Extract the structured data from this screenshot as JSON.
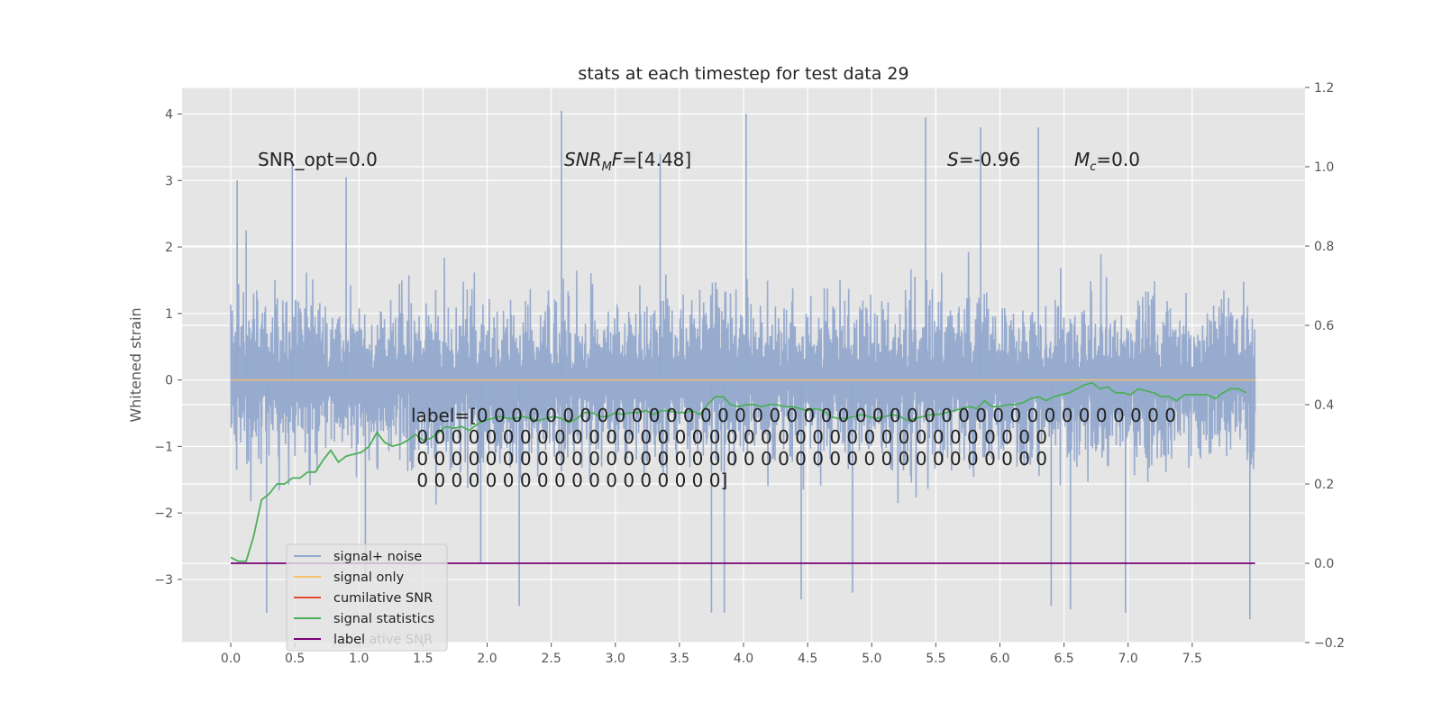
{
  "chart_data": {
    "type": "line",
    "title": "stats at each timestep for test data 29",
    "ylabel": "Whitened strain",
    "xlim": [
      -0.38,
      8.38
    ],
    "ylim": [
      -3.95,
      4.4
    ],
    "y2lim": [
      -0.2,
      1.2
    ],
    "x_ticks": [
      0.0,
      0.5,
      1.0,
      1.5,
      2.0,
      2.5,
      3.0,
      3.5,
      4.0,
      4.5,
      5.0,
      5.5,
      6.0,
      6.5,
      7.0,
      7.5
    ],
    "x_tick_labels": [
      "0.0",
      "0.5",
      "1.0",
      "1.5",
      "2.0",
      "2.5",
      "3.0",
      "3.5",
      "4.0",
      "4.5",
      "5.0",
      "5.5",
      "6.0",
      "6.5",
      "7.0",
      "7.5"
    ],
    "y_ticks": [
      -3,
      -2,
      -1,
      0,
      1,
      2,
      3,
      4
    ],
    "y_tick_labels": [
      "−3",
      "−2",
      "−1",
      "0",
      "1",
      "2",
      "3",
      "4"
    ],
    "y2_ticks": [
      -0.2,
      0.0,
      0.2,
      0.4,
      0.6,
      0.8,
      1.0,
      1.2
    ],
    "y2_tick_labels": [
      "−0.2",
      "0.0",
      "0.2",
      "0.4",
      "0.6",
      "0.8",
      "1.0",
      "1.2"
    ],
    "grid": true,
    "legend_position": "lower-left",
    "annotations": {
      "snr_opt": "SNR_opt=0.0",
      "snr_mf_italic": "SNR",
      "snr_mf_sub": "M",
      "snr_mf_rest": "F",
      "snr_mf_value": "=[4.48]",
      "s_symbol": "S",
      "s_value": "=-0.96",
      "mc_symbol": "M",
      "mc_sub": "c",
      "mc_value": "=0.0",
      "label_lines": [
        "label=[0 0 0 0 0 0 0 0 0 0 0 0 0 0 0 0 0 0 0 0 0 0 0 0 0 0 0 0 0 0 0 0 0 0 0 0 0 0 0 0 0",
        " 0 0 0 0 0 0 0 0 0 0 0 0 0 0 0 0 0 0 0 0 0 0 0 0 0 0 0 0 0 0 0 0 0 0 0 0 0",
        " 0 0 0 0 0 0 0 0 0 0 0 0 0 0 0 0 0 0 0 0 0 0 0 0 0 0 0 0 0 0 0 0 0 0 0 0 0",
        " 0 0 0 0 0 0 0 0 0 0 0 0 0 0 0 0 0 0]"
      ]
    },
    "legend": [
      {
        "name": "signal+ noise",
        "color": "#92a8cd"
      },
      {
        "name": "signal only",
        "color": "#f5c26b"
      },
      {
        "name": "cumilative SNR",
        "color": "#e24a33"
      },
      {
        "name": "signal statistics",
        "color": "#4daf5a"
      },
      {
        "name": "label",
        "color": "#7a0177"
      }
    ],
    "legend_ghost_text": "cumilative SNR",
    "series": [
      {
        "name": "signal+ noise",
        "axis": "left",
        "color": "#92a8cd",
        "x_range": [
          0.0,
          7.99
        ],
        "approx_range": [
          -3.6,
          4.05
        ],
        "peaks": [
          {
            "x": 0.05,
            "y": 3.0
          },
          {
            "x": 0.12,
            "y": 2.25
          },
          {
            "x": 0.28,
            "y": -3.5
          },
          {
            "x": 0.48,
            "y": 3.3
          },
          {
            "x": 0.9,
            "y": 3.05
          },
          {
            "x": 1.05,
            "y": -2.9
          },
          {
            "x": 1.95,
            "y": -2.75
          },
          {
            "x": 2.25,
            "y": -3.4
          },
          {
            "x": 2.58,
            "y": 4.05
          },
          {
            "x": 3.35,
            "y": 3.4
          },
          {
            "x": 3.75,
            "y": -3.5
          },
          {
            "x": 3.85,
            "y": -3.5
          },
          {
            "x": 4.02,
            "y": 4.0
          },
          {
            "x": 4.45,
            "y": -3.3
          },
          {
            "x": 4.85,
            "y": -3.2
          },
          {
            "x": 5.42,
            "y": 3.95
          },
          {
            "x": 5.85,
            "y": 3.8
          },
          {
            "x": 6.3,
            "y": 3.8
          },
          {
            "x": 6.4,
            "y": -3.4
          },
          {
            "x": 6.55,
            "y": -3.45
          },
          {
            "x": 6.98,
            "y": -3.5
          },
          {
            "x": 7.95,
            "y": -3.6
          }
        ]
      },
      {
        "name": "signal only",
        "axis": "left",
        "color": "#f5c26b",
        "x": [
          0.0,
          7.99
        ],
        "y": [
          0.0,
          0.0
        ]
      },
      {
        "name": "signal statistics",
        "axis": "right",
        "color": "#4daf5a",
        "x": [
          0.0,
          0.06,
          0.12,
          0.18,
          0.24,
          0.3,
          0.36,
          0.42,
          0.48,
          0.54,
          0.6,
          0.66,
          0.72,
          0.78,
          0.84,
          0.9,
          0.96,
          1.02,
          1.08,
          1.14,
          1.2,
          1.26,
          1.32,
          1.38,
          1.44,
          1.5,
          1.56,
          1.62,
          1.68,
          1.74,
          1.8,
          1.86,
          1.92,
          1.98,
          2.04,
          2.1,
          2.16,
          2.22,
          2.28,
          2.34,
          2.4,
          2.46,
          2.52,
          2.58,
          2.64,
          2.7,
          2.76,
          2.82,
          2.88,
          2.94,
          3.0,
          3.06,
          3.12,
          3.18,
          3.24,
          3.3,
          3.36,
          3.42,
          3.48,
          3.54,
          3.6,
          3.66,
          3.72,
          3.78,
          3.84,
          3.9,
          3.96,
          4.02,
          4.08,
          4.14,
          4.2,
          4.26,
          4.32,
          4.38,
          4.44,
          4.5,
          4.56,
          4.62,
          4.68,
          4.74,
          4.8,
          4.86,
          4.92,
          4.98,
          5.04,
          5.1,
          5.16,
          5.22,
          5.28,
          5.34,
          5.4,
          5.46,
          5.52,
          5.58,
          5.64,
          5.7,
          5.76,
          5.82,
          5.88,
          5.94,
          6.0,
          6.06,
          6.12,
          6.18,
          6.24,
          6.3,
          6.36,
          6.42,
          6.48,
          6.54,
          6.6,
          6.66,
          6.72,
          6.78,
          6.84,
          6.9,
          6.96,
          7.02,
          7.08,
          7.14,
          7.2,
          7.26,
          7.32,
          7.38,
          7.44,
          7.5,
          7.56,
          7.62,
          7.68,
          7.74,
          7.8,
          7.86,
          7.92
        ],
        "y": [
          0.015,
          0.005,
          0.005,
          0.07,
          0.16,
          0.175,
          0.2,
          0.2,
          0.215,
          0.215,
          0.23,
          0.23,
          0.26,
          0.285,
          0.255,
          0.27,
          0.275,
          0.28,
          0.295,
          0.33,
          0.305,
          0.295,
          0.3,
          0.31,
          0.325,
          0.31,
          0.315,
          0.33,
          0.345,
          0.34,
          0.345,
          0.335,
          0.35,
          0.36,
          0.365,
          0.37,
          0.365,
          0.365,
          0.37,
          0.365,
          0.36,
          0.365,
          0.37,
          0.365,
          0.355,
          0.365,
          0.38,
          0.38,
          0.37,
          0.37,
          0.38,
          0.375,
          0.38,
          0.38,
          0.385,
          0.375,
          0.385,
          0.385,
          0.38,
          0.38,
          0.385,
          0.375,
          0.4,
          0.42,
          0.42,
          0.4,
          0.395,
          0.4,
          0.4,
          0.395,
          0.4,
          0.4,
          0.395,
          0.395,
          0.39,
          0.385,
          0.39,
          0.385,
          0.37,
          0.365,
          0.365,
          0.37,
          0.375,
          0.37,
          0.365,
          0.37,
          0.375,
          0.37,
          0.36,
          0.365,
          0.37,
          0.375,
          0.375,
          0.38,
          0.385,
          0.39,
          0.395,
          0.39,
          0.41,
          0.395,
          0.395,
          0.4,
          0.4,
          0.405,
          0.415,
          0.42,
          0.41,
          0.42,
          0.425,
          0.43,
          0.44,
          0.45,
          0.455,
          0.44,
          0.445,
          0.43,
          0.43,
          0.425,
          0.44,
          0.435,
          0.43,
          0.42,
          0.42,
          0.41,
          0.425,
          0.425,
          0.425,
          0.425,
          0.415,
          0.43,
          0.44,
          0.44,
          0.43
        ]
      },
      {
        "name": "label",
        "axis": "right",
        "color": "#7a0177",
        "x": [
          0.0,
          7.99
        ],
        "y": [
          0.0,
          0.0
        ]
      }
    ]
  }
}
